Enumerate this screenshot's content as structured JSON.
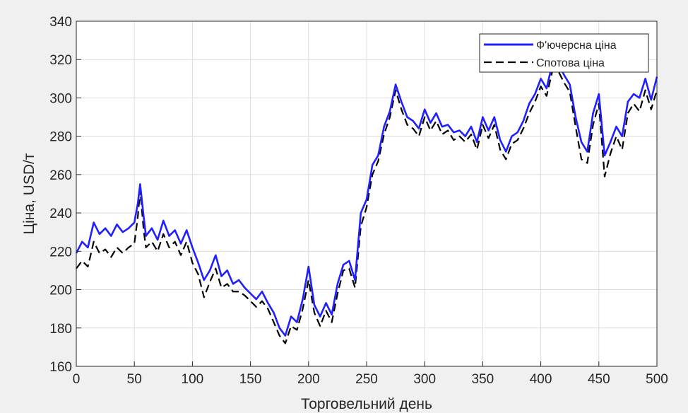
{
  "chart_data": {
    "type": "line",
    "title": "",
    "xlabel": "Торговельний день",
    "ylabel": "Ціна, USD/т",
    "xlim": [
      0,
      500
    ],
    "ylim": [
      160,
      340
    ],
    "xticks": [
      0,
      50,
      100,
      150,
      200,
      250,
      300,
      350,
      400,
      450,
      500
    ],
    "yticks": [
      160,
      180,
      200,
      220,
      240,
      260,
      280,
      300,
      320,
      340
    ],
    "grid": true,
    "legend_position": "top-right",
    "series": [
      {
        "name": "Ф'ючерсна ціна",
        "color": "#1f1fff",
        "style": "solid",
        "x": [
          0,
          5,
          10,
          15,
          20,
          25,
          30,
          35,
          40,
          45,
          50,
          53,
          55,
          58,
          60,
          65,
          70,
          75,
          80,
          85,
          90,
          95,
          100,
          105,
          110,
          115,
          120,
          125,
          130,
          135,
          140,
          145,
          150,
          155,
          160,
          165,
          170,
          175,
          180,
          185,
          190,
          195,
          200,
          205,
          210,
          215,
          220,
          225,
          230,
          235,
          240,
          245,
          250,
          255,
          260,
          265,
          270,
          275,
          280,
          285,
          290,
          295,
          300,
          305,
          310,
          315,
          320,
          325,
          330,
          335,
          340,
          345,
          350,
          355,
          360,
          365,
          370,
          375,
          380,
          385,
          390,
          395,
          400,
          405,
          410,
          415,
          420,
          425,
          430,
          435,
          440,
          445,
          450,
          455,
          460,
          465,
          470,
          475,
          480,
          485,
          490,
          495,
          500
        ],
        "values": [
          219,
          225,
          222,
          235,
          229,
          232,
          228,
          234,
          230,
          232,
          235,
          245,
          255,
          238,
          228,
          232,
          226,
          236,
          228,
          231,
          224,
          231,
          222,
          214,
          205,
          210,
          218,
          207,
          210,
          203,
          205,
          201,
          198,
          195,
          199,
          193,
          188,
          180,
          176,
          186,
          183,
          195,
          212,
          192,
          186,
          193,
          187,
          203,
          213,
          215,
          205,
          240,
          247,
          265,
          270,
          285,
          293,
          307,
          298,
          290,
          288,
          284,
          294,
          287,
          292,
          285,
          286,
          282,
          283,
          280,
          285,
          277,
          290,
          283,
          290,
          278,
          272,
          280,
          282,
          288,
          297,
          302,
          310,
          305,
          318,
          318,
          312,
          307,
          290,
          277,
          272,
          292,
          302,
          270,
          277,
          285,
          280,
          298,
          302,
          300,
          310,
          299,
          311
        ]
      },
      {
        "name": "Спотова ціна",
        "color": "#000000",
        "style": "dashed",
        "x": [
          0,
          5,
          10,
          15,
          20,
          25,
          30,
          35,
          40,
          45,
          50,
          53,
          55,
          58,
          60,
          65,
          70,
          75,
          80,
          85,
          90,
          95,
          100,
          105,
          110,
          115,
          120,
          125,
          130,
          135,
          140,
          145,
          150,
          155,
          160,
          165,
          170,
          175,
          180,
          185,
          190,
          195,
          200,
          205,
          210,
          215,
          220,
          225,
          230,
          235,
          240,
          245,
          250,
          255,
          260,
          265,
          270,
          275,
          280,
          285,
          290,
          295,
          300,
          305,
          310,
          315,
          320,
          325,
          330,
          335,
          340,
          345,
          350,
          355,
          360,
          365,
          370,
          375,
          380,
          385,
          390,
          395,
          400,
          405,
          410,
          415,
          420,
          425,
          430,
          435,
          440,
          445,
          450,
          455,
          460,
          465,
          470,
          475,
          480,
          485,
          490,
          495,
          500
        ],
        "values": [
          211,
          215,
          212,
          225,
          219,
          221,
          217,
          222,
          219,
          222,
          224,
          238,
          252,
          231,
          222,
          225,
          220,
          229,
          222,
          225,
          218,
          225,
          214,
          208,
          196,
          204,
          211,
          201,
          203,
          199,
          199,
          197,
          194,
          191,
          194,
          190,
          183,
          176,
          172,
          181,
          179,
          190,
          205,
          188,
          181,
          189,
          183,
          198,
          210,
          211,
          201,
          233,
          243,
          260,
          267,
          281,
          290,
          304,
          294,
          286,
          284,
          280,
          290,
          283,
          288,
          281,
          283,
          278,
          280,
          277,
          281,
          273,
          286,
          279,
          286,
          273,
          268,
          276,
          278,
          284,
          292,
          298,
          306,
          301,
          314,
          314,
          308,
          303,
          285,
          268,
          266,
          286,
          297,
          259,
          271,
          280,
          273,
          292,
          297,
          293,
          304,
          294,
          304
        ]
      }
    ]
  }
}
